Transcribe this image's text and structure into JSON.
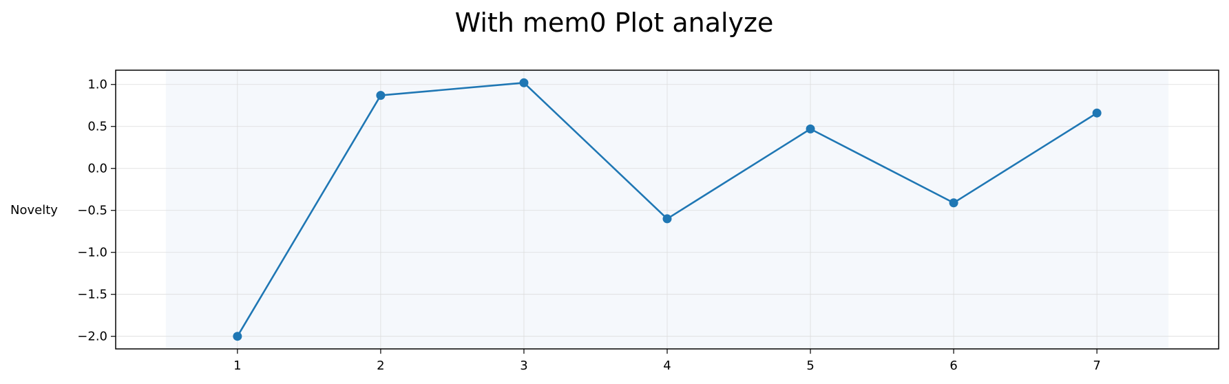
{
  "chart_data": {
    "type": "line",
    "title": "With mem0 Plot analyze",
    "xlabel": "",
    "ylabel": "Novelty",
    "x": [
      1,
      2,
      3,
      4,
      5,
      6,
      7
    ],
    "x_tick_labels": [
      "1",
      "2",
      "3",
      "4",
      "5",
      "6",
      "7"
    ],
    "xlim": [
      0.15,
      7.85
    ],
    "ylim": [
      -2.15,
      1.17
    ],
    "y_ticks": [
      1.0,
      0.5,
      0.0,
      -0.5,
      -1.0,
      -1.5,
      -2.0
    ],
    "y_tick_labels": [
      "1.0",
      "0.5",
      "0.0",
      "−0.5",
      "−1.0",
      "−1.5",
      "−2.0"
    ],
    "shaded_x_range": [
      0.5,
      7.5
    ],
    "grid": true,
    "series": [
      {
        "name": "Novelty",
        "values": [
          -2.0,
          0.87,
          1.02,
          -0.6,
          0.47,
          -0.41,
          0.66
        ],
        "color": "#1f77b4",
        "marker": "circle"
      }
    ],
    "colors": {
      "line": "#1f77b4",
      "shade": "#f5f8fc",
      "grid": "#dcdcdc",
      "axes": "#000000"
    }
  }
}
